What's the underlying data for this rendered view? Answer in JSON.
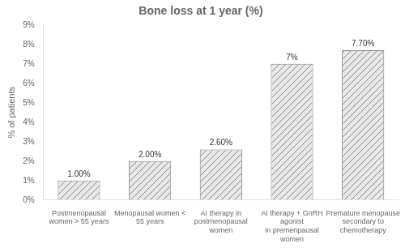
{
  "chart_data": {
    "type": "bar",
    "title": "Bone loss at 1 year (%)",
    "ylabel": "% of patients",
    "categories": [
      "Postmenopausal\nwomen > 55 years",
      "Menopausal women <\n55 years",
      "AI therapy in\npostmenopausal\nwomen",
      "AI therapy + GnRH\nagonist\nin premenpausal\nwomen",
      "Premature menopause\nsecondary to\nchemotherapy"
    ],
    "values": [
      1.0,
      2.0,
      2.6,
      7.0,
      7.7
    ],
    "value_labels": [
      "1.00%",
      "2.00%",
      "2.60%",
      "7%",
      "7.70%"
    ],
    "data_labels": true,
    "color": "#e8e8e8",
    "ylim": [
      0,
      9
    ],
    "yticks": [
      {
        "value": 0,
        "label": "0%"
      },
      {
        "value": 1,
        "label": "1%"
      },
      {
        "value": 2,
        "label": "2%"
      },
      {
        "value": 3,
        "label": "3%"
      },
      {
        "value": 4,
        "label": "4%"
      },
      {
        "value": 5,
        "label": "5%"
      },
      {
        "value": 6,
        "label": "6%"
      },
      {
        "value": 7,
        "label": "7%"
      },
      {
        "value": 8,
        "label": "8%"
      },
      {
        "value": 9,
        "label": "9%"
      }
    ],
    "grid": false
  }
}
